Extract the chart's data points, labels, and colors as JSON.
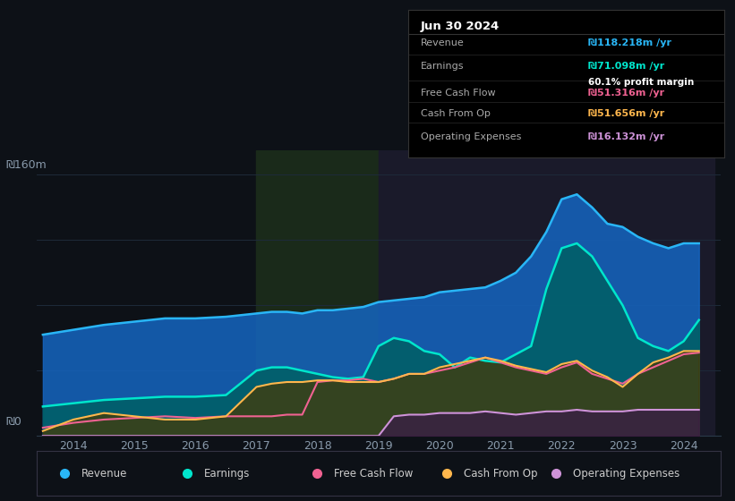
{
  "bg_color": "#0d1117",
  "chart_bg": "#0d1117",
  "ylabel_top": "₪160m",
  "ylabel_bottom": "₪0",
  "years": [
    2013.5,
    2014,
    2014.5,
    2015,
    2015.5,
    2016,
    2016.5,
    2017,
    2017.25,
    2017.5,
    2017.75,
    2018,
    2018.25,
    2018.5,
    2018.75,
    2019,
    2019.25,
    2019.5,
    2019.75,
    2020,
    2020.25,
    2020.5,
    2020.75,
    2021,
    2021.25,
    2021.5,
    2021.75,
    2022,
    2022.25,
    2022.5,
    2022.75,
    2023,
    2023.25,
    2023.5,
    2023.75,
    2024,
    2024.25
  ],
  "revenue": [
    62,
    65,
    68,
    70,
    72,
    72,
    73,
    75,
    76,
    76,
    75,
    77,
    77,
    78,
    79,
    82,
    83,
    84,
    85,
    88,
    89,
    90,
    91,
    95,
    100,
    110,
    125,
    145,
    148,
    140,
    130,
    128,
    122,
    118,
    115,
    118,
    118
  ],
  "earnings": [
    18,
    20,
    22,
    23,
    24,
    24,
    25,
    40,
    42,
    42,
    40,
    38,
    36,
    35,
    36,
    55,
    60,
    58,
    52,
    50,
    42,
    48,
    46,
    45,
    50,
    55,
    90,
    115,
    118,
    110,
    95,
    80,
    60,
    55,
    52,
    58,
    71
  ],
  "free_cash_flow": [
    5,
    8,
    10,
    11,
    12,
    11,
    12,
    12,
    12,
    13,
    13,
    33,
    34,
    34,
    35,
    33,
    35,
    38,
    38,
    40,
    42,
    45,
    48,
    45,
    42,
    40,
    38,
    42,
    45,
    38,
    35,
    32,
    38,
    42,
    46,
    50,
    51
  ],
  "cash_from_op": [
    3,
    10,
    14,
    12,
    10,
    10,
    12,
    30,
    32,
    33,
    33,
    34,
    34,
    33,
    33,
    33,
    35,
    38,
    38,
    42,
    44,
    46,
    48,
    46,
    43,
    41,
    39,
    44,
    46,
    40,
    36,
    30,
    38,
    45,
    48,
    52,
    52
  ],
  "operating_expenses": [
    0,
    0,
    0,
    0,
    0,
    0,
    0,
    0,
    0,
    0,
    0,
    0,
    0,
    0,
    0,
    0,
    12,
    13,
    13,
    14,
    14,
    14,
    15,
    14,
    13,
    14,
    15,
    15,
    16,
    15,
    15,
    15,
    16,
    16,
    16,
    16,
    16
  ],
  "revenue_color": "#29b6f6",
  "earnings_color": "#00e5cc",
  "free_cash_flow_color": "#f06292",
  "cash_from_op_color": "#ffb74d",
  "operating_expenses_color": "#ce93d8",
  "revenue_fill": "#1565c0",
  "earnings_fill": "#006064",
  "cash_from_op_fill": "#4a3800",
  "operating_expenses_fill": "#3a1a4a",
  "grid_color": "#1e2a3a",
  "shaded_regions": [
    {
      "start": 2017.0,
      "end": 2019.0,
      "color": "#1a2a1a"
    },
    {
      "start": 2019.0,
      "end": 2024.5,
      "color": "#1a1a2a"
    }
  ],
  "info_box": {
    "date": "Jun 30 2024",
    "revenue_label": "Revenue",
    "revenue_value": "₪118.218m /yr",
    "revenue_color": "#29b6f6",
    "earnings_label": "Earnings",
    "earnings_value": "₪71.098m /yr",
    "earnings_color": "#00e5cc",
    "margin_text": "60.1% profit margin",
    "fcf_label": "Free Cash Flow",
    "fcf_value": "₪51.316m /yr",
    "fcf_color": "#f06292",
    "cashop_label": "Cash From Op",
    "cashop_value": "₪51.656m /yr",
    "cashop_color": "#ffb74d",
    "opex_label": "Operating Expenses",
    "opex_value": "₪16.132m /yr",
    "opex_color": "#ce93d8"
  },
  "legend": [
    {
      "label": "Revenue",
      "color": "#29b6f6"
    },
    {
      "label": "Earnings",
      "color": "#00e5cc"
    },
    {
      "label": "Free Cash Flow",
      "color": "#f06292"
    },
    {
      "label": "Cash From Op",
      "color": "#ffb74d"
    },
    {
      "label": "Operating Expenses",
      "color": "#ce93d8"
    }
  ],
  "xlim": [
    2013.4,
    2024.6
  ],
  "ylim": [
    0,
    175
  ],
  "xticks": [
    2014,
    2015,
    2016,
    2017,
    2018,
    2019,
    2020,
    2021,
    2022,
    2023,
    2024
  ]
}
